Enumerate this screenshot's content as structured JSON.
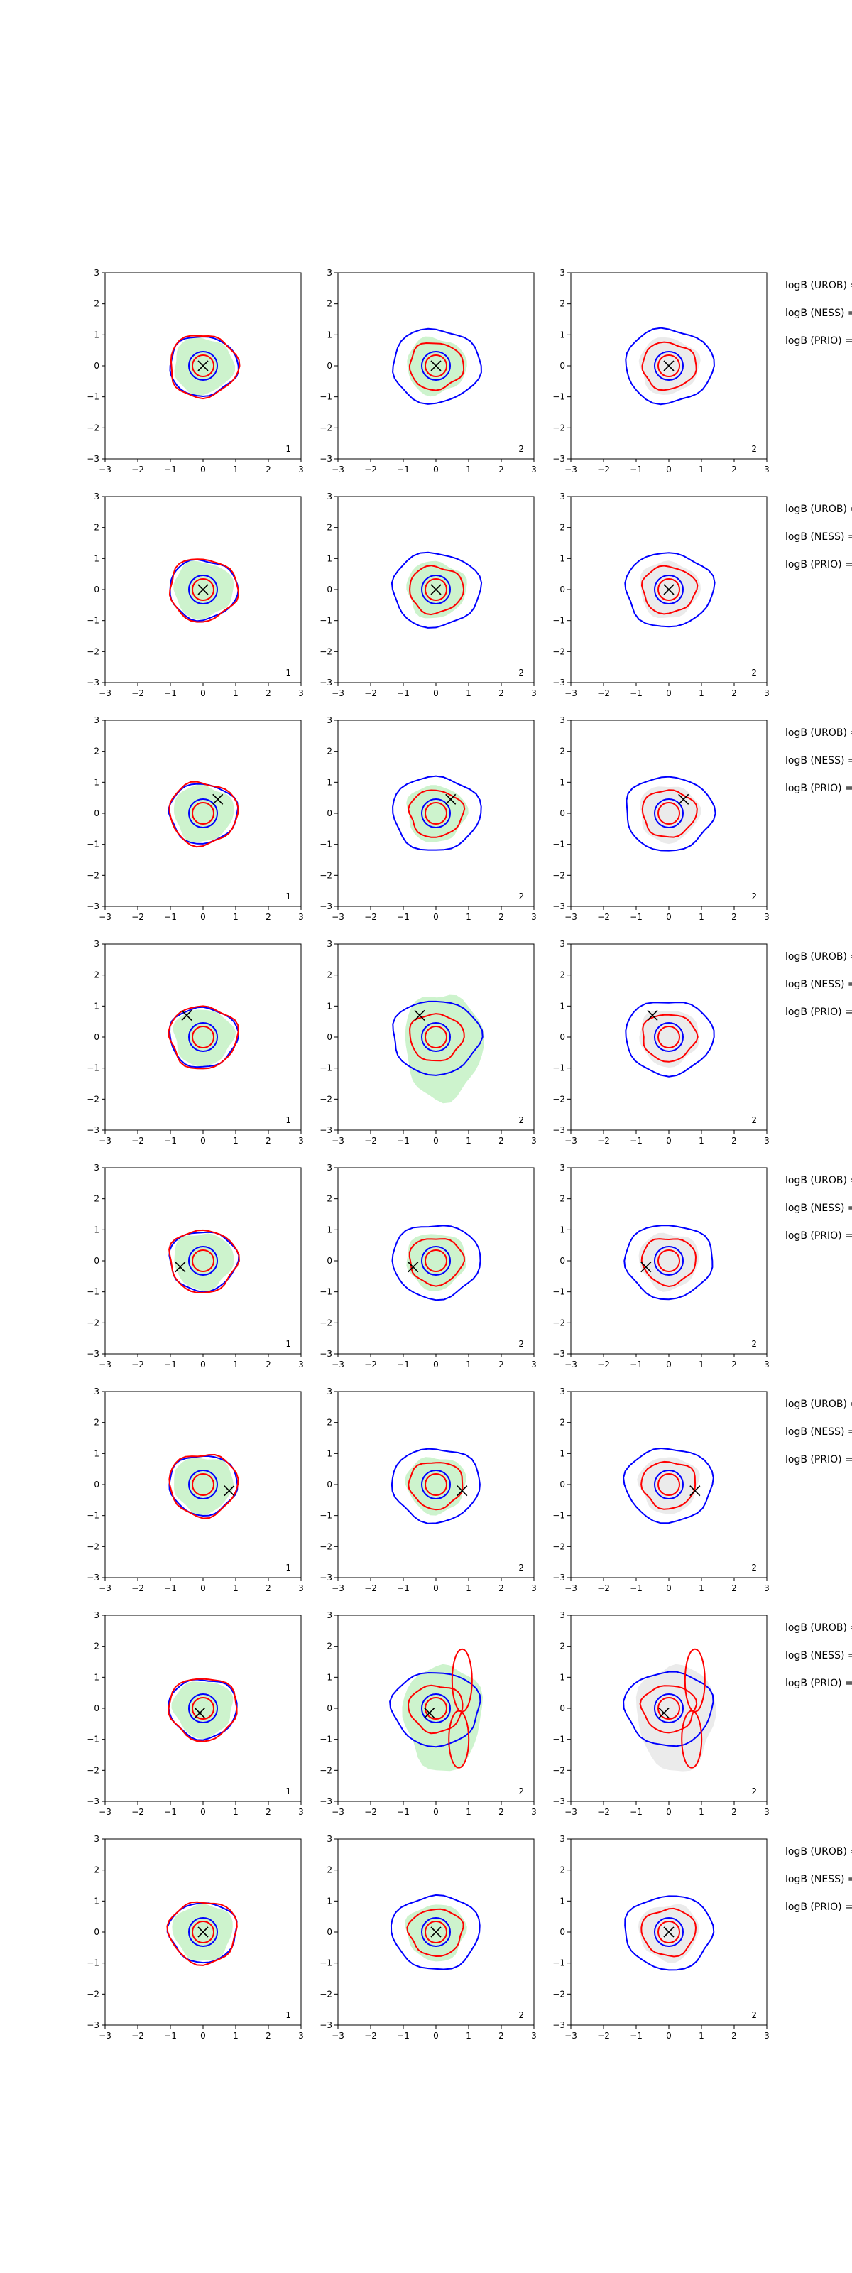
{
  "chart_data": {
    "type": "contour-grid",
    "rows": 8,
    "columns": 3,
    "xlim": [
      -3,
      3
    ],
    "ylim": [
      -3,
      3
    ],
    "ticks": [
      "−3",
      "−2",
      "−1",
      "0",
      "1",
      "2",
      "3"
    ],
    "side_labels": [
      "logB (UROB) =",
      "logB (NESS) =",
      "logB (PRIO) ="
    ],
    "series": [
      {
        "name": "inner contour",
        "color": "#0000ff"
      },
      {
        "name": "outer contour",
        "color": "#ff0000"
      },
      {
        "name": "column 1-2 fill",
        "color": "#cdf3cd"
      },
      {
        "name": "column 3 fill",
        "color": "#ebebeb"
      }
    ],
    "panels": [
      {
        "row": 1,
        "markers": [
          [
            0.0,
            0.0
          ],
          [
            0.0,
            0.0
          ],
          [
            0.0,
            0.0
          ]
        ],
        "corner_labels": [
          "1",
          "2",
          "2"
        ]
      },
      {
        "row": 2,
        "markers": [
          [
            0.0,
            0.0
          ],
          [
            0.0,
            0.0
          ],
          [
            0.0,
            0.0
          ]
        ],
        "corner_labels": [
          "1",
          "2",
          "2"
        ]
      },
      {
        "row": 3,
        "markers": [
          [
            0.45,
            0.45
          ],
          [
            0.45,
            0.45
          ],
          [
            0.45,
            0.45
          ]
        ],
        "corner_labels": [
          "1",
          "2",
          "2"
        ]
      },
      {
        "row": 4,
        "markers": [
          [
            -0.5,
            0.7
          ],
          [
            -0.5,
            0.7
          ],
          [
            -0.5,
            0.7
          ]
        ],
        "corner_labels": [
          "1",
          "2",
          "2"
        ]
      },
      {
        "row": 5,
        "markers": [
          [
            -0.7,
            -0.2
          ],
          [
            -0.7,
            -0.2
          ],
          [
            -0.7,
            -0.2
          ]
        ],
        "corner_labels": [
          "1",
          "2",
          "2"
        ]
      },
      {
        "row": 6,
        "markers": [
          [
            0.8,
            -0.2
          ],
          [
            0.8,
            -0.2
          ],
          [
            0.8,
            -0.2
          ]
        ],
        "corner_labels": [
          "1",
          "2",
          "2"
        ]
      },
      {
        "row": 7,
        "markers": [
          [
            -0.1,
            -0.15
          ],
          [
            -0.2,
            -0.15
          ],
          [
            -0.15,
            -0.15
          ]
        ],
        "corner_labels": [
          "1",
          "2",
          "2"
        ]
      },
      {
        "row": 8,
        "markers": [
          [
            0.0,
            0.0
          ],
          [
            0.0,
            0.0
          ],
          [
            0.0,
            0.0
          ]
        ],
        "corner_labels": [
          "1",
          "2",
          "2"
        ]
      }
    ]
  }
}
